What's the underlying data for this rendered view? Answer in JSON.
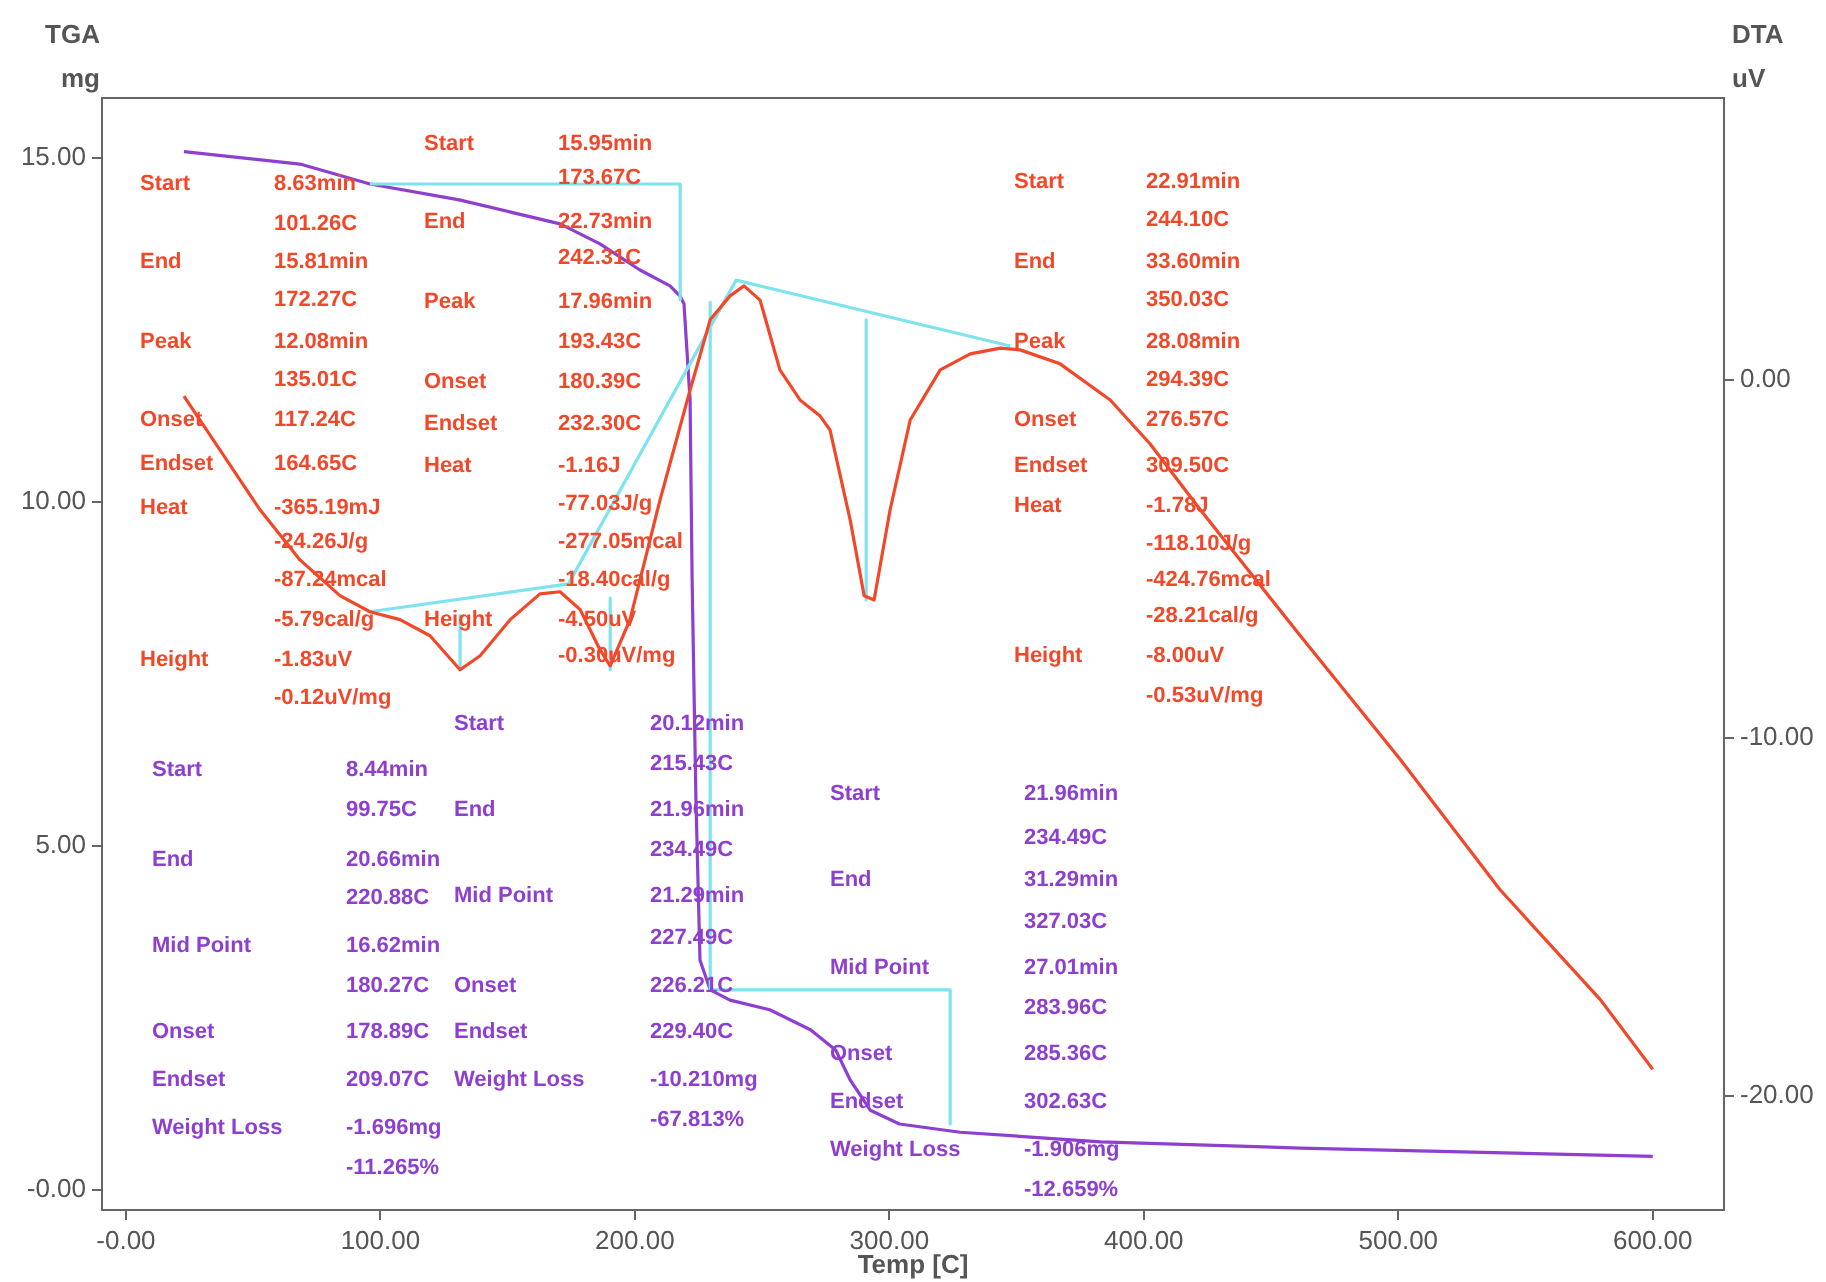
{
  "chart_data": {
    "type": "line",
    "xlabel": "Temp [C]",
    "ylabel": "TGA\nmg",
    "y2label": "DTA\nuV",
    "marker": "none",
    "legend": false,
    "xlim": [
      -9.4,
      628
    ],
    "xticks": [
      {
        "value": 0,
        "label": "-0.00"
      },
      {
        "value": 100,
        "label": "100.00"
      },
      {
        "value": 200,
        "label": "200.00"
      },
      {
        "value": 300,
        "label": "300.00"
      },
      {
        "value": 400,
        "label": "400.00"
      },
      {
        "value": 500,
        "label": "500.00"
      },
      {
        "value": 600,
        "label": "600.00"
      }
    ],
    "ylim": [
      -0.29,
      15.87
    ],
    "yticks": [
      {
        "value": 0,
        "label": "-0.00"
      },
      {
        "value": 5,
        "label": "5.00"
      },
      {
        "value": 10,
        "label": "10.00"
      },
      {
        "value": 15,
        "label": "15.00"
      }
    ],
    "y2lim": [
      -23.2,
      7.88
    ],
    "y2ticks": [
      {
        "value": 0,
        "label": "0.00"
      },
      {
        "value": -10,
        "label": "-10.00"
      },
      {
        "value": -20,
        "label": "-20.00"
      }
    ],
    "series": [
      {
        "color": "#f2482a",
        "axis": "y2",
        "x": [
          22.8,
          37,
          52.7,
          68.4,
          84.1,
          95.9,
          107.7,
          119.5,
          131.3,
          139.2,
          151,
          162.7,
          170.6,
          178.5,
          186.3,
          190.3,
          198.1,
          209.9,
          221.7,
          229.6,
          237.4,
          242.9,
          249.2,
          257,
          264.9,
          272.8,
          276.7,
          284.6,
          290.1,
          294,
          300.3,
          308.2,
          320,
          331.8,
          343.6,
          351.4,
          367.1,
          386.8,
          402.5,
          422.2,
          461.5,
          500.8,
          540,
          579.4,
          600
        ],
        "values": [
          -0.45,
          -1.96,
          -3.63,
          -5.03,
          -6.03,
          -6.48,
          -6.7,
          -7.15,
          -8.1,
          -7.71,
          -6.7,
          -5.98,
          -5.92,
          -6.42,
          -7.54,
          -7.99,
          -6.7,
          -3.35,
          -0.28,
          1.68,
          2.35,
          2.63,
          2.23,
          0.28,
          -0.56,
          -1.01,
          -1.4,
          -3.91,
          -6.03,
          -6.15,
          -3.63,
          -1.12,
          0.28,
          0.73,
          0.89,
          0.84,
          0.45,
          -0.56,
          -1.79,
          -3.63,
          -7.15,
          -10.61,
          -14.25,
          -17.32,
          -19.27
        ]
      },
      {
        "color": "#7fe3ee",
        "axis": "y2",
        "x": [
          95.9,
          173.9,
          239.8,
          347.5
        ],
        "values": [
          -6.48,
          -5.7,
          2.79,
          0.95
        ]
      },
      {
        "color": "#7fe3ee",
        "axis": "y2",
        "x": [
          131.3,
          131.3
        ],
        "values": [
          -6.59,
          -8.1
        ]
      },
      {
        "color": "#7fe3ee",
        "axis": "y2",
        "x": [
          190.3,
          190.3
        ],
        "values": [
          -6.1,
          -8.1
        ]
      },
      {
        "color": "#7fe3ee",
        "axis": "y2",
        "x": [
          290.9,
          290.9
        ],
        "values": [
          1.68,
          -6.15
        ]
      },
      {
        "color": "#7fe3ee",
        "axis": "y",
        "x": [
          95.9,
          217.8,
          217.8
        ],
        "values": [
          14.62,
          14.62,
          12.94
        ]
      },
      {
        "color": "#7fe3ee",
        "axis": "y",
        "x": [
          229.6,
          229.6,
          323.9,
          323.9
        ],
        "values": [
          12.9,
          2.91,
          2.91,
          0.96
        ]
      },
      {
        "color": "#8e3fcf",
        "axis": "y",
        "x": [
          22.8,
          68.4,
          95.9,
          131,
          170.6,
          186.3,
          202,
          213.8,
          217.8,
          219.3,
          221.7,
          222.5,
          224,
          225.6,
          229.6,
          237.4,
          253,
          269,
          279,
          284.6,
          292.5,
          304,
          327.8,
          383,
          461.5,
          600
        ],
        "values": [
          15.09,
          14.91,
          14.62,
          14.39,
          14.04,
          13.75,
          13.37,
          13.14,
          12.99,
          12.88,
          11.48,
          8.87,
          5.67,
          3.34,
          2.91,
          2.76,
          2.62,
          2.33,
          2.03,
          1.6,
          1.16,
          0.96,
          0.84,
          0.7,
          0.61,
          0.49
        ]
      }
    ],
    "annotations": [
      "Start",
      "8.63min",
      "101.26C",
      "End",
      "15.81min",
      "172.27C",
      "Peak",
      "12.08min",
      "135.01C",
      "Onset",
      "117.24C",
      "Endset",
      "164.65C",
      "Heat",
      "-365.19mJ",
      "-24.26J/g",
      "-87.24mcal",
      "-5.79cal/g",
      "Height",
      "-1.83uV",
      "-0.12uV/mg",
      "Start",
      "15.95min",
      "173.67C",
      "End",
      "22.73min",
      "242.31C",
      "Peak",
      "17.96min",
      "193.43C",
      "Onset",
      "180.39C",
      "Endset",
      "232.30C",
      "Heat",
      "-1.16J",
      "-77.03J/g",
      "-277.05mcal",
      "-18.40cal/g",
      "Height",
      "-4.50uV",
      "-0.30uV/mg",
      "Start",
      "22.91min",
      "244.10C",
      "End",
      "33.60min",
      "350.03C",
      "Peak",
      "28.08min",
      "294.39C",
      "Onset",
      "276.57C",
      "Endset",
      "309.50C",
      "Heat",
      "-1.78J",
      "-118.10J/g",
      "-424.76mcal",
      "-28.21cal/g",
      "Height",
      "-8.00uV",
      "-0.53uV/mg",
      "Start",
      "8.44min",
      "99.75C",
      "End",
      "20.66min",
      "220.88C",
      "Mid Point",
      "16.62min",
      "180.27C",
      "Onset",
      "178.89C",
      "Endset",
      "209.07C",
      "Weight Loss",
      "-1.696mg",
      "-11.265%",
      "Start",
      "20.12min",
      "215.43C",
      "End",
      "21.96min",
      "234.49C",
      "Mid Point",
      "21.29min",
      "227.49C",
      "Onset",
      "226.21C",
      "Endset",
      "229.40C",
      "Weight Loss",
      "-10.210mg",
      "-67.813%",
      "Start",
      "21.96min",
      "234.49C",
      "End",
      "31.29min",
      "327.03C",
      "Mid Point",
      "27.01min",
      "283.96C",
      "Onset",
      "285.36C",
      "Endset",
      "302.63C",
      "Weight Loss",
      "-1.906mg",
      "-12.659%"
    ]
  }
}
